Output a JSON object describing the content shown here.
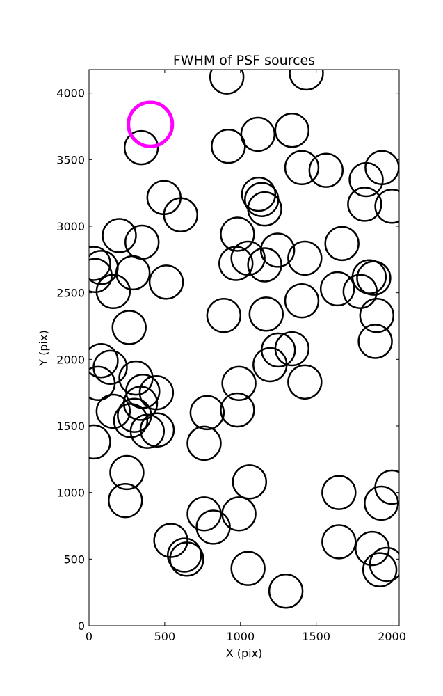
{
  "chart_data": {
    "type": "scatter",
    "title": "FWHM of PSF sources",
    "xlabel": "X (pix)",
    "ylabel": "Y (pix)",
    "xlim": [
      0,
      2048
    ],
    "ylim": [
      0,
      4176
    ],
    "xticks": [
      0,
      500,
      1000,
      1500,
      2000
    ],
    "yticks": [
      0,
      500,
      1000,
      1500,
      2000,
      2500,
      3000,
      3500,
      4000
    ],
    "grid": false,
    "marker": "open-circle",
    "highlight_color": "#ff00ff",
    "series_color": "#000000",
    "highlight": {
      "x": 405,
      "y": 3765,
      "r": 145
    },
    "points": [
      {
        "x": 910,
        "y": 4120
      },
      {
        "x": 1435,
        "y": 4150
      },
      {
        "x": 345,
        "y": 3590
      },
      {
        "x": 920,
        "y": 3600
      },
      {
        "x": 1115,
        "y": 3690
      },
      {
        "x": 1340,
        "y": 3720
      },
      {
        "x": 1405,
        "y": 3440
      },
      {
        "x": 1565,
        "y": 3420
      },
      {
        "x": 1830,
        "y": 3350
      },
      {
        "x": 1935,
        "y": 3440
      },
      {
        "x": 495,
        "y": 3215
      },
      {
        "x": 605,
        "y": 3085
      },
      {
        "x": 1120,
        "y": 3240
      },
      {
        "x": 1140,
        "y": 3200
      },
      {
        "x": 1160,
        "y": 3130
      },
      {
        "x": 1820,
        "y": 3165
      },
      {
        "x": 2000,
        "y": 3150
      },
      {
        "x": 200,
        "y": 2930
      },
      {
        "x": 350,
        "y": 2880
      },
      {
        "x": 980,
        "y": 2940
      },
      {
        "x": 1670,
        "y": 2870
      },
      {
        "x": 30,
        "y": 2720
      },
      {
        "x": 80,
        "y": 2690
      },
      {
        "x": 40,
        "y": 2630
      },
      {
        "x": 160,
        "y": 2510
      },
      {
        "x": 290,
        "y": 2650
      },
      {
        "x": 510,
        "y": 2580
      },
      {
        "x": 970,
        "y": 2720
      },
      {
        "x": 1050,
        "y": 2760
      },
      {
        "x": 1160,
        "y": 2710
      },
      {
        "x": 1245,
        "y": 2820
      },
      {
        "x": 1425,
        "y": 2760
      },
      {
        "x": 1640,
        "y": 2530
      },
      {
        "x": 1790,
        "y": 2510
      },
      {
        "x": 1850,
        "y": 2620
      },
      {
        "x": 1880,
        "y": 2610
      },
      {
        "x": 1405,
        "y": 2440
      },
      {
        "x": 265,
        "y": 2240
      },
      {
        "x": 890,
        "y": 2330
      },
      {
        "x": 1170,
        "y": 2340
      },
      {
        "x": 1900,
        "y": 2330
      },
      {
        "x": 1890,
        "y": 2135
      },
      {
        "x": 80,
        "y": 1990
      },
      {
        "x": 140,
        "y": 1940
      },
      {
        "x": 60,
        "y": 1820
      },
      {
        "x": 1250,
        "y": 2070
      },
      {
        "x": 1340,
        "y": 2080
      },
      {
        "x": 1195,
        "y": 1960
      },
      {
        "x": 1425,
        "y": 1830
      },
      {
        "x": 310,
        "y": 1860
      },
      {
        "x": 355,
        "y": 1760
      },
      {
        "x": 445,
        "y": 1750
      },
      {
        "x": 340,
        "y": 1670
      },
      {
        "x": 160,
        "y": 1610
      },
      {
        "x": 275,
        "y": 1540
      },
      {
        "x": 300,
        "y": 1580
      },
      {
        "x": 385,
        "y": 1460
      },
      {
        "x": 450,
        "y": 1470
      },
      {
        "x": 780,
        "y": 1600
      },
      {
        "x": 990,
        "y": 1820
      },
      {
        "x": 980,
        "y": 1620
      },
      {
        "x": 30,
        "y": 1380
      },
      {
        "x": 760,
        "y": 1370
      },
      {
        "x": 250,
        "y": 1150
      },
      {
        "x": 240,
        "y": 940
      },
      {
        "x": 1060,
        "y": 1080
      },
      {
        "x": 1650,
        "y": 1000
      },
      {
        "x": 2000,
        "y": 1040
      },
      {
        "x": 1930,
        "y": 920
      },
      {
        "x": 760,
        "y": 840
      },
      {
        "x": 820,
        "y": 740
      },
      {
        "x": 990,
        "y": 840
      },
      {
        "x": 540,
        "y": 640
      },
      {
        "x": 630,
        "y": 530
      },
      {
        "x": 645,
        "y": 500
      },
      {
        "x": 1650,
        "y": 630
      },
      {
        "x": 1870,
        "y": 580
      },
      {
        "x": 1965,
        "y": 460
      },
      {
        "x": 1920,
        "y": 420
      },
      {
        "x": 1050,
        "y": 430
      },
      {
        "x": 1300,
        "y": 260
      }
    ],
    "point_radius": 110
  }
}
